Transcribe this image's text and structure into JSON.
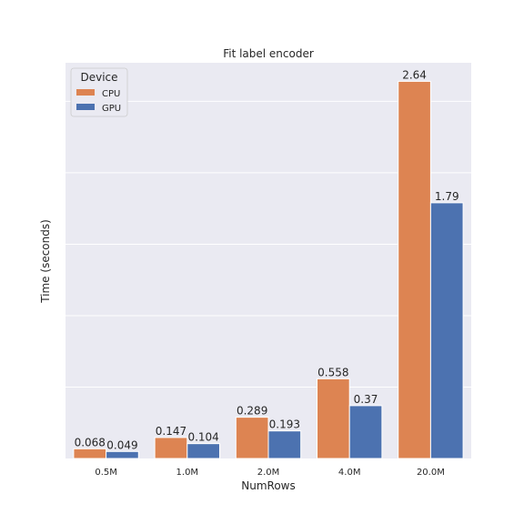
{
  "chart_data": {
    "type": "bar",
    "title": "Fit label encoder",
    "xlabel": "NumRows",
    "ylabel": "Time (seconds)",
    "categories": [
      "0.5M",
      "1.0M",
      "2.0M",
      "4.0M",
      "20.0M"
    ],
    "series": [
      {
        "name": "CPU",
        "values": [
          0.068,
          0.147,
          0.289,
          0.558,
          2.64
        ]
      },
      {
        "name": "GPU",
        "values": [
          0.049,
          0.104,
          0.193,
          0.37,
          1.79
        ]
      }
    ],
    "data_labels": [
      [
        "0.068",
        "0.147",
        "0.289",
        "0.558",
        "2.64"
      ],
      [
        "0.049",
        "0.104",
        "0.193",
        "0.37",
        "1.79"
      ]
    ],
    "ylim": [
      0,
      2.77
    ],
    "ygrid_step": 0.5,
    "ytick_labels_visible": false,
    "grid": true,
    "legend": {
      "title": "Device",
      "placement": "top-left"
    },
    "colors": {
      "CPU": "#dd8452",
      "GPU": "#4c72b0",
      "background": "#eaeaf2",
      "grid": "#ffffff"
    }
  }
}
